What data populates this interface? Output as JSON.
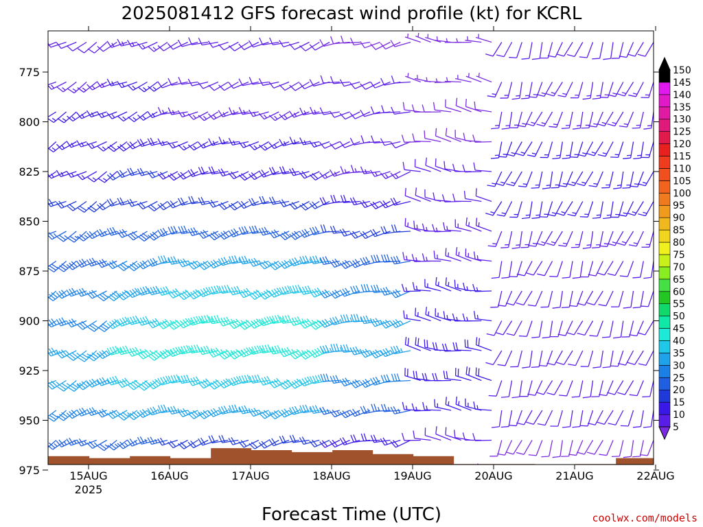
{
  "chart_data": {
    "type": "wind_barb_profile",
    "title": "2025081412 GFS forecast wind profile (kt) for KCRL",
    "xlabel": "Forecast Time (UTC)",
    "ylabel": "",
    "credit": "coolwx.com/models",
    "x_ticks": [
      "15AUG",
      "16AUG",
      "17AUG",
      "18AUG",
      "19AUG",
      "20AUG",
      "21AUG",
      "22AUG"
    ],
    "x_year": "2025",
    "x_range": [
      "14AUG 12Z",
      "22AUG 00Z"
    ],
    "y_ticks": [
      775,
      800,
      825,
      850,
      875,
      900,
      925,
      950,
      975
    ],
    "y_range": [
      755,
      980
    ],
    "pressure_levels": [
      760,
      780,
      795,
      810,
      825,
      840,
      855,
      870,
      885,
      900,
      915,
      930,
      945,
      960,
      975
    ],
    "segments": [
      {
        "from_day": 0.0,
        "to_day": 0.9,
        "direction_deg": 240,
        "speed_kt": [
          12,
          14,
          16,
          16,
          17,
          20,
          25,
          28,
          30,
          32,
          35,
          35,
          30,
          25,
          10
        ]
      },
      {
        "from_day": 0.9,
        "to_day": 1.5,
        "direction_deg": 245,
        "speed_kt": [
          14,
          15,
          16,
          18,
          20,
          22,
          28,
          32,
          38,
          42,
          45,
          42,
          35,
          25,
          8
        ]
      },
      {
        "from_day": 1.5,
        "to_day": 3.5,
        "direction_deg": 250,
        "speed_kt": [
          10,
          12,
          14,
          15,
          18,
          22,
          28,
          35,
          40,
          45,
          45,
          42,
          35,
          22,
          8
        ]
      },
      {
        "from_day": 3.5,
        "to_day": 4.5,
        "direction_deg": 255,
        "speed_kt": [
          8,
          10,
          10,
          12,
          14,
          18,
          22,
          28,
          32,
          35,
          35,
          32,
          25,
          18,
          6
        ]
      },
      {
        "from_day": 4.5,
        "to_day": 5.5,
        "direction_deg": 280,
        "speed_kt": [
          6,
          6,
          8,
          8,
          10,
          12,
          14,
          14,
          15,
          16,
          18,
          18,
          15,
          12,
          5
        ]
      },
      {
        "from_day": 5.5,
        "to_day": 7.5,
        "direction_deg": 200,
        "speed_kt": [
          12,
          14,
          14,
          15,
          15,
          15,
          14,
          12,
          12,
          12,
          12,
          10,
          10,
          8,
          6
        ]
      }
    ],
    "terrain": {
      "label": "surface pressure",
      "days": [
        0.0,
        0.5,
        1.0,
        1.5,
        2.0,
        2.5,
        3.0,
        3.5,
        4.0,
        4.5,
        5.0,
        5.5,
        6.0,
        6.5,
        7.0,
        7.5
      ],
      "pressure": [
        968,
        968,
        969,
        968,
        969,
        964,
        965,
        966,
        965,
        967,
        968,
        972,
        972,
        973,
        972,
        969
      ]
    },
    "colorbar": {
      "levels": [
        5,
        10,
        15,
        20,
        25,
        30,
        35,
        40,
        45,
        50,
        55,
        60,
        65,
        70,
        75,
        80,
        85,
        90,
        95,
        100,
        105,
        110,
        115,
        120,
        125,
        130,
        135,
        140,
        145,
        150
      ],
      "colors": [
        "#7a2be0",
        "#5a1de8",
        "#3a18e8",
        "#1f3ad9",
        "#1f5fe0",
        "#1a80e6",
        "#1ea3ea",
        "#1fc7e8",
        "#1ee8d6",
        "#10e8a8",
        "#10d86a",
        "#22c722",
        "#44e044",
        "#88ee22",
        "#c8f01a",
        "#f0f01e",
        "#f0d41e",
        "#f0b81e",
        "#f09a1e",
        "#f07a1e",
        "#f0641e",
        "#f0501e",
        "#f03c1e",
        "#e8201e",
        "#e01a4a",
        "#e01a7a",
        "#e01aa2",
        "#e01ac8",
        "#e01aee",
        "#000000"
      ]
    },
    "grid": false
  }
}
